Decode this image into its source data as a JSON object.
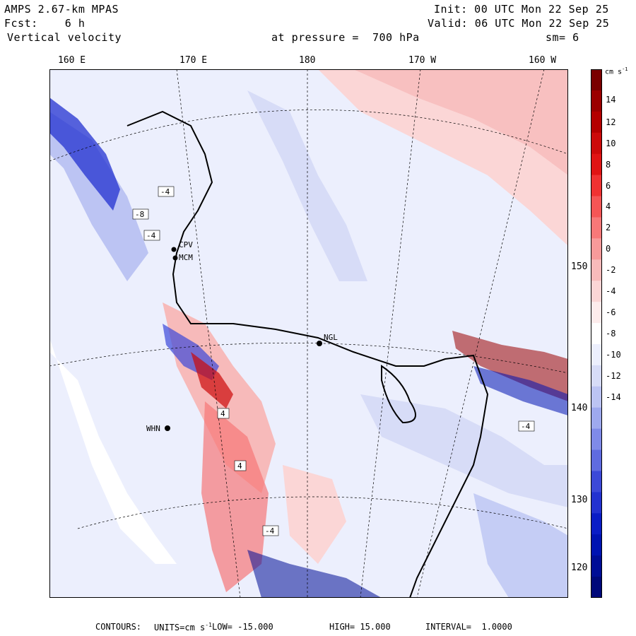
{
  "header": {
    "model": "AMPS 2.67-km MPAS",
    "fcst_label": "Fcst:",
    "fcst_value": "6 h",
    "field": "Vertical velocity",
    "init": "Init: 00 UTC Mon 22 Sep 25",
    "valid": "Valid: 06 UTC Mon 22 Sep 25",
    "pressure": "at pressure =  700 hPa",
    "smoothing": "sm= 6"
  },
  "map": {
    "lon_labels": [
      "160 E",
      "170 E",
      "180",
      "170 W",
      "160 W"
    ],
    "lat_labels": [
      "150 W",
      "140 W",
      "130 W",
      "120 W"
    ],
    "stations": [
      "CPV",
      "MCM",
      "NGL",
      "WHN"
    ],
    "contour_labels": [
      "-4",
      "-8",
      "-4",
      "-4",
      "-4",
      "4",
      "4"
    ]
  },
  "colorbar": {
    "units": "cm s",
    "units_exp": "-1",
    "ticks": [
      "14",
      "12",
      "10",
      "8",
      "6",
      "4",
      "2",
      "0",
      "-2",
      "-4",
      "-6",
      "-8",
      "-10",
      "-12",
      "-14"
    ],
    "colors": [
      "#7a0000",
      "#9b0000",
      "#b40000",
      "#cc0a0a",
      "#e01414",
      "#f03232",
      "#f55555",
      "#f77878",
      "#f79a9a",
      "#f7baba",
      "#fbd6d6",
      "#fdecec",
      "#ffffff",
      "#eceffd",
      "#d7dcf7",
      "#bcc4f3",
      "#9ea9ee",
      "#7f8ae8",
      "#5f6be0",
      "#3c49d8",
      "#2332d0",
      "#0a1dc6",
      "#0013b2",
      "#000d96",
      "#00087a"
    ]
  },
  "footer": {
    "contours": "CONTOURS:",
    "units_label": "UNITS=cm s",
    "units_exp": "-1",
    "low_label": "LOW=",
    "low": "-15.000",
    "high_label": "HIGH=",
    "high": "15.000",
    "interval_label": "INTERVAL=",
    "interval": "1.0000"
  }
}
